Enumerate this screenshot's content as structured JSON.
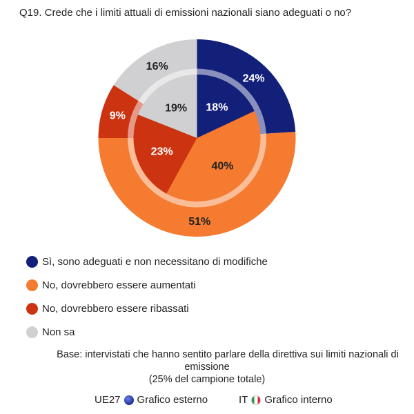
{
  "title": "Q19. Crede che i limiti attuali di emissioni nazionali siano adeguati o no?",
  "colors": {
    "si_adeguati": "#13207a",
    "aumentati": "#f47b30",
    "ribassati": "#cc3310",
    "non_sa": "#d0d0d2"
  },
  "legend": [
    {
      "label": "Sì, sono adeguati e non necessitano di modifiche",
      "color": "#13207a"
    },
    {
      "label": "No, dovrebbero essere aumentati",
      "color": "#f47b30"
    },
    {
      "label": "No, dovrebbero essere ribassati",
      "color": "#cc3310"
    },
    {
      "label": "Non sa",
      "color": "#d0d0d2"
    }
  ],
  "base": {
    "line1": "Base: intervistati che hanno sentito parlare della direttiva sui limiti nazionali di",
    "line2": "emissione",
    "line3": "(25% del campione totale)"
  },
  "footer": {
    "outer_code": "UE27",
    "outer_label": "Grafico esterno",
    "inner_code": "IT",
    "inner_label": "Grafico interno"
  },
  "chart_data": {
    "type": "pie",
    "title": "Q19. Crede che i limiti attuali di emissioni nazionali siano adeguati o no?",
    "categories": [
      "Sì, sono adeguati e non necessitano di modifiche",
      "No, dovrebbero essere aumentati",
      "No, dovrebbero essere ribassati",
      "Non sa"
    ],
    "series": [
      {
        "name": "UE27 (Grafico esterno)",
        "ring": "outer",
        "values": [
          24,
          51,
          9,
          16
        ]
      },
      {
        "name": "IT (Grafico interno)",
        "ring": "inner",
        "values": [
          18,
          40,
          23,
          19
        ]
      }
    ],
    "unit": "%",
    "legend_position": "bottom-left"
  }
}
